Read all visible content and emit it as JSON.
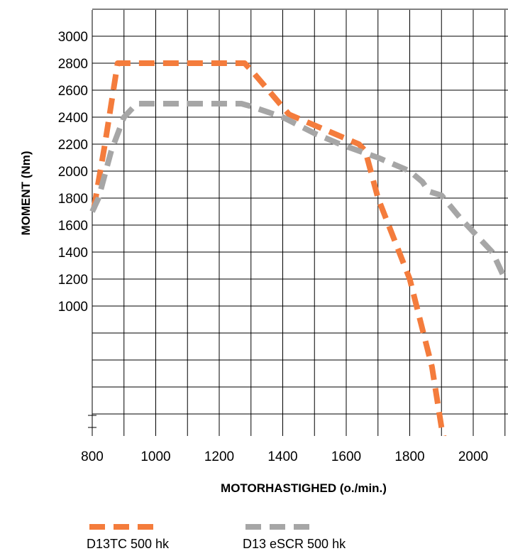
{
  "chart_data": {
    "type": "line",
    "xlabel": "MOTORHASTIGHED (o./min.)",
    "ylabel": "MOMENT (Nm)",
    "x_ticks": [
      800,
      1000,
      1200,
      1400,
      1600,
      1800,
      2000
    ],
    "y_ticks": [
      1000,
      1200,
      1400,
      1600,
      1800,
      2000,
      2200,
      2400,
      2600,
      2800,
      3000
    ],
    "xlim": [
      800,
      2100
    ],
    "ylim": [
      0,
      3000
    ],
    "grid": true,
    "legend_position": "bottom-left",
    "series": [
      {
        "name": "D13TC 500 hk",
        "color": "#f47c3c",
        "dash": "dashed",
        "x": [
          805,
          840,
          880,
          900,
          1280,
          1300,
          1420,
          1640,
          1660,
          1700,
          1800,
          1870,
          1900,
          1920
        ],
        "y": [
          1720,
          2200,
          2800,
          2800,
          2800,
          2750,
          2420,
          2200,
          2150,
          1800,
          1200,
          550,
          100,
          -100
        ]
      },
      {
        "name": "D13 eSCR 500 hk",
        "color": "#a6a6a6",
        "dash": "dashed",
        "x": [
          800,
          820,
          860,
          900,
          940,
          1270,
          1300,
          1400,
          1500,
          1580,
          1700,
          1800,
          1840,
          1860,
          1900,
          1960,
          2000,
          2060,
          2100
        ],
        "y": [
          1700,
          1800,
          2150,
          2400,
          2500,
          2500,
          2480,
          2400,
          2280,
          2200,
          2100,
          2000,
          1920,
          1850,
          1820,
          1650,
          1550,
          1400,
          1200
        ]
      }
    ]
  }
}
